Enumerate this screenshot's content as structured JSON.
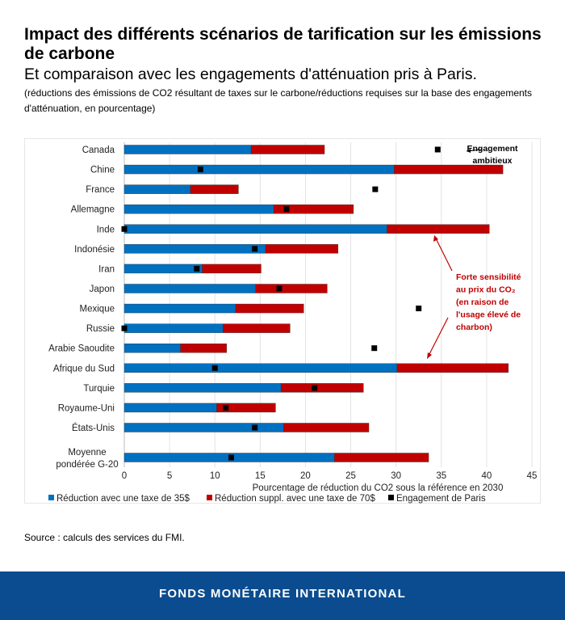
{
  "header": {
    "title": "Impact des différents scénarios de tarification sur les émissions de carbone",
    "subtitle": "Et comparaison avec les engagements d'atténuation pris à Paris.",
    "note": "(réductions des émissions de CO2 résultant de taxes sur le carbone/réductions requises sur la base des engagements d'atténuation, en pourcentage)"
  },
  "chart_data": {
    "type": "bar",
    "orientation": "horizontal",
    "stacked": true,
    "categories": [
      "Canada",
      "Chine",
      "France",
      "Allemagne",
      "Inde",
      "Indonésie",
      "Iran",
      "Japon",
      "Mexique",
      "Russie",
      "Arabie Saoudite",
      "Afrique du Sud",
      "Turquie",
      "Royaume-Uni",
      "États-Unis",
      "Moyenne pondérée G-20"
    ],
    "series": [
      {
        "name": "Réduction avec une taxe de 35$",
        "color": "#0070c0",
        "values": [
          14.0,
          29.8,
          7.3,
          16.5,
          29.0,
          15.6,
          8.6,
          14.5,
          12.3,
          10.9,
          6.2,
          30.1,
          17.3,
          10.2,
          17.6,
          23.2
        ]
      },
      {
        "name": "Réduction suppl. avec une taxe de 70$",
        "color": "#c00000",
        "values": [
          8.1,
          12.0,
          5.3,
          8.8,
          11.3,
          8.0,
          6.5,
          7.9,
          7.5,
          7.4,
          5.1,
          12.3,
          9.1,
          6.5,
          9.4,
          10.4
        ]
      }
    ],
    "markers": {
      "name": "Engagement de Paris",
      "color": "#000000",
      "values": [
        34.6,
        8.4,
        27.7,
        17.9,
        0,
        14.4,
        8.0,
        17.1,
        32.5,
        0,
        27.6,
        10.0,
        21.0,
        11.2,
        14.4,
        11.8
      ]
    },
    "xlabel": "Pourcentage de réduction du CO2 sous la référence en 2030",
    "xlim": [
      0,
      45
    ],
    "xticks": [
      "0",
      "5",
      "10",
      "15",
      "20",
      "25",
      "30",
      "35",
      "40",
      "45"
    ],
    "grid": "vertical",
    "legend": "bottom",
    "annotations": [
      {
        "text": "Engagement ambitieux",
        "lines": [
          "Engagement",
          "ambitieux"
        ],
        "color": "#000000"
      },
      {
        "text": "Forte sensibilité au prix du CO₂ (en raison de l'usage élevé de charbon)",
        "lines": [
          "Forte sensibilité",
          "au prix du CO₂",
          "(en raison de",
          "l'usage élevé de",
          "charbon)"
        ],
        "color": "#c00000"
      }
    ]
  },
  "source": "Source : calculs des services du FMI.",
  "footer": "FONDS MONÉTAIRE INTERNATIONAL"
}
